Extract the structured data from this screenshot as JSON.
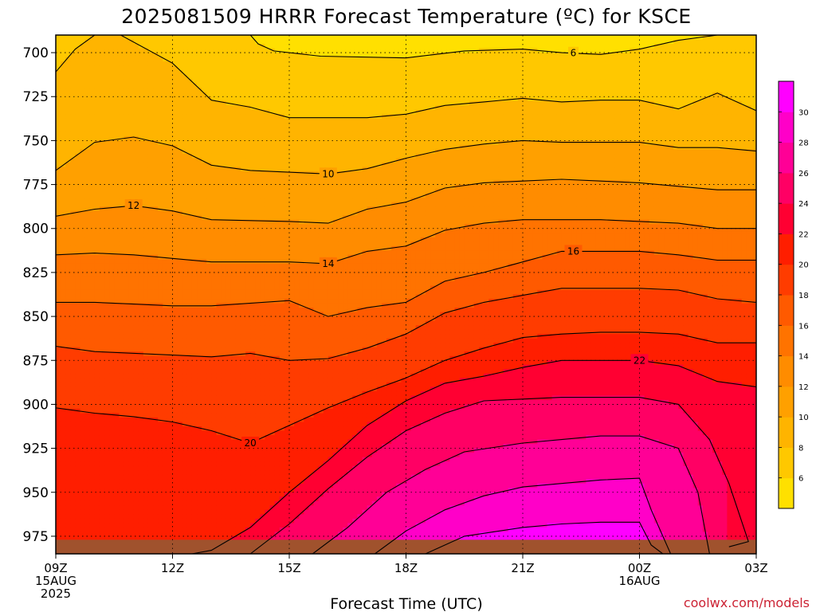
{
  "chart_data": {
    "type": "heatmap",
    "title": "2025081509 HRRR Forecast Temperature (ºC) for KSCE",
    "xlabel": "Forecast Time (UTC)",
    "ylabel": "",
    "credit": "coolwx.com/models",
    "y_axis": {
      "quantity": "pressure (hPa)",
      "range": [
        690,
        985
      ],
      "inverted": true,
      "ticks": [
        700,
        725,
        750,
        775,
        800,
        825,
        850,
        875,
        900,
        925,
        950,
        975
      ],
      "tick_labels": [
        "700",
        "725",
        "750",
        "775",
        "800",
        "825",
        "850",
        "875",
        "900",
        "925",
        "950",
        "975"
      ]
    },
    "x_axis": {
      "range": [
        "2025-08-15T09:00Z",
        "2025-08-16T03:00Z"
      ],
      "hours_range": [
        9,
        27
      ],
      "tick_hours": [
        9,
        12,
        15,
        18,
        21,
        24,
        27
      ],
      "tick_labels": [
        [
          "09Z",
          "15AUG",
          "2025"
        ],
        [
          "12Z"
        ],
        [
          "15Z"
        ],
        [
          "18Z"
        ],
        [
          "21Z"
        ],
        [
          "00Z",
          "16AUG"
        ],
        [
          "03Z"
        ]
      ]
    },
    "grid": true,
    "grid_style": "dotted",
    "ground_color": "#a0522d",
    "colorbar": {
      "placement": "right",
      "levels": [
        4,
        6,
        8,
        10,
        12,
        14,
        16,
        18,
        20,
        22,
        24,
        26,
        28,
        30,
        32
      ],
      "tick_labels": [
        "6",
        "8",
        "10",
        "12",
        "14",
        "16",
        "18",
        "20",
        "22",
        "24",
        "26",
        "28",
        "30"
      ],
      "colors": [
        "#ffe000",
        "#ffc800",
        "#ffb400",
        "#ffa000",
        "#ff8c00",
        "#ff7300",
        "#ff5a00",
        "#ff3c00",
        "#ff1e00",
        "#ff0032",
        "#ff0064",
        "#ff0096",
        "#ff00c8",
        "#ff00ff"
      ]
    },
    "contour_interval": 2,
    "contours": [
      {
        "value": 6,
        "label": "6",
        "points": [
          [
            14.0,
            690
          ],
          [
            14.2,
            695
          ],
          [
            14.6,
            699
          ],
          [
            15.8,
            702
          ],
          [
            18.0,
            703
          ],
          [
            19.5,
            699
          ],
          [
            21.0,
            698
          ],
          [
            22.0,
            700
          ],
          [
            23.0,
            701
          ],
          [
            24.0,
            698
          ],
          [
            25.0,
            693
          ],
          [
            26.0,
            690
          ]
        ]
      },
      {
        "value": 8,
        "label": "",
        "points": [
          [
            9.0,
            711
          ],
          [
            9.5,
            698
          ],
          [
            10.0,
            690
          ],
          [
            10.5,
            688
          ],
          [
            12.0,
            706
          ],
          [
            13.0,
            727
          ],
          [
            14.0,
            731
          ],
          [
            15.0,
            737
          ],
          [
            17.0,
            737
          ],
          [
            18.0,
            735
          ],
          [
            19.0,
            730
          ],
          [
            20.0,
            728
          ],
          [
            21.0,
            726
          ],
          [
            22.0,
            728
          ],
          [
            23.0,
            727
          ],
          [
            24.0,
            727
          ],
          [
            25.0,
            732
          ],
          [
            26.0,
            723
          ],
          [
            27.0,
            733
          ]
        ]
      },
      {
        "value": 10,
        "label": "10",
        "points": [
          [
            9.0,
            767
          ],
          [
            10.0,
            751
          ],
          [
            11.0,
            748
          ],
          [
            12.0,
            753
          ],
          [
            13.0,
            764
          ],
          [
            14.0,
            767
          ],
          [
            16.0,
            769
          ],
          [
            17.0,
            766
          ],
          [
            18.0,
            760
          ],
          [
            19.0,
            755
          ],
          [
            20.0,
            752
          ],
          [
            21.0,
            750
          ],
          [
            22.0,
            751
          ],
          [
            23.0,
            751
          ],
          [
            24.0,
            751
          ],
          [
            25.0,
            754
          ],
          [
            26.0,
            754
          ],
          [
            27.0,
            756
          ]
        ]
      },
      {
        "value": 12,
        "label": "12",
        "points": [
          [
            9.0,
            793
          ],
          [
            10.0,
            789
          ],
          [
            11.0,
            787
          ],
          [
            12.0,
            790
          ],
          [
            13.0,
            795
          ],
          [
            15.0,
            796
          ],
          [
            16.0,
            797
          ],
          [
            17.0,
            789
          ],
          [
            18.0,
            785
          ],
          [
            19.0,
            777
          ],
          [
            20.0,
            774
          ],
          [
            21.0,
            773
          ],
          [
            22.0,
            772
          ],
          [
            23.0,
            773
          ],
          [
            24.0,
            774
          ],
          [
            25.0,
            776
          ],
          [
            26.0,
            778
          ],
          [
            27.0,
            778
          ]
        ]
      },
      {
        "value": 14,
        "label": "14",
        "points": [
          [
            9.0,
            815
          ],
          [
            10.0,
            814
          ],
          [
            11.0,
            815
          ],
          [
            12.0,
            817
          ],
          [
            13.0,
            819
          ],
          [
            15.0,
            819
          ],
          [
            16.0,
            820
          ],
          [
            17.0,
            813
          ],
          [
            18.0,
            810
          ],
          [
            19.0,
            801
          ],
          [
            20.0,
            797
          ],
          [
            21.0,
            795
          ],
          [
            22.0,
            795
          ],
          [
            23.0,
            795
          ],
          [
            24.0,
            796
          ],
          [
            25.0,
            797
          ],
          [
            26.0,
            800
          ],
          [
            27.0,
            800
          ]
        ]
      },
      {
        "value": 16,
        "label": "16",
        "points": [
          [
            9.0,
            842
          ],
          [
            10.0,
            842
          ],
          [
            11.0,
            843
          ],
          [
            12.0,
            844
          ],
          [
            13.0,
            844
          ],
          [
            15.0,
            841
          ],
          [
            16.0,
            850
          ],
          [
            17.0,
            845
          ],
          [
            18.0,
            842
          ],
          [
            19.0,
            830
          ],
          [
            20.0,
            825
          ],
          [
            21.0,
            819
          ],
          [
            22.0,
            813
          ],
          [
            23.0,
            813
          ],
          [
            24.0,
            813
          ],
          [
            25.0,
            815
          ],
          [
            26.0,
            818
          ],
          [
            27.0,
            818
          ]
        ]
      },
      {
        "value": 18,
        "label": "",
        "points": [
          [
            9.0,
            867
          ],
          [
            10.0,
            870
          ],
          [
            12.0,
            872
          ],
          [
            13.0,
            873
          ],
          [
            14.0,
            871
          ],
          [
            15.0,
            875
          ],
          [
            16.0,
            874
          ],
          [
            17.0,
            868
          ],
          [
            18.0,
            860
          ],
          [
            19.0,
            848
          ],
          [
            20.0,
            842
          ],
          [
            21.0,
            838
          ],
          [
            22.0,
            834
          ],
          [
            23.0,
            834
          ],
          [
            24.0,
            834
          ],
          [
            25.0,
            835
          ],
          [
            26.0,
            840
          ],
          [
            27.0,
            842
          ]
        ]
      },
      {
        "value": 20,
        "label": "20",
        "points": [
          [
            9.0,
            902
          ],
          [
            10.0,
            905
          ],
          [
            11.0,
            907
          ],
          [
            12.0,
            910
          ],
          [
            13.0,
            915
          ],
          [
            14.0,
            922
          ],
          [
            15.0,
            912
          ],
          [
            16.0,
            902
          ],
          [
            17.0,
            893
          ],
          [
            18.0,
            885
          ],
          [
            19.0,
            875
          ],
          [
            20.0,
            868
          ],
          [
            21.0,
            862
          ],
          [
            22.0,
            860
          ],
          [
            23.0,
            859
          ],
          [
            24.0,
            859
          ],
          [
            25.0,
            860
          ],
          [
            26.0,
            865
          ],
          [
            27.0,
            865
          ]
        ]
      },
      {
        "value": 22,
        "label": "22",
        "points": [
          [
            12.5,
            985
          ],
          [
            13.0,
            983
          ],
          [
            14.0,
            970
          ],
          [
            15.0,
            950
          ],
          [
            16.0,
            932
          ],
          [
            17.0,
            912
          ],
          [
            18.0,
            898
          ],
          [
            19.0,
            888
          ],
          [
            20.0,
            884
          ],
          [
            21.0,
            879
          ],
          [
            22.0,
            875
          ],
          [
            23.0,
            875
          ],
          [
            24.0,
            875
          ],
          [
            25.0,
            878
          ],
          [
            26.0,
            887
          ],
          [
            27.0,
            890
          ]
        ]
      },
      {
        "value": 24,
        "label": "",
        "points": [
          [
            14.0,
            985
          ],
          [
            15.0,
            968
          ],
          [
            16.0,
            948
          ],
          [
            17.0,
            930
          ],
          [
            18.0,
            915
          ],
          [
            19.0,
            905
          ],
          [
            20.0,
            898
          ],
          [
            21.0,
            897
          ],
          [
            22.0,
            896
          ],
          [
            23.0,
            896
          ],
          [
            24.0,
            896
          ],
          [
            25.0,
            900
          ],
          [
            25.8,
            920
          ],
          [
            26.3,
            945
          ],
          [
            26.8,
            978
          ],
          [
            26.3,
            981
          ]
        ]
      },
      {
        "value": 26,
        "label": "",
        "points": [
          [
            15.6,
            985
          ],
          [
            16.5,
            970
          ],
          [
            17.5,
            950
          ],
          [
            18.5,
            937
          ],
          [
            19.5,
            927
          ],
          [
            21.0,
            922
          ],
          [
            22.0,
            920
          ],
          [
            23.0,
            918
          ],
          [
            24.0,
            918
          ],
          [
            25.0,
            925
          ],
          [
            25.5,
            950
          ],
          [
            25.8,
            985
          ]
        ]
      },
      {
        "value": 28,
        "label": "",
        "points": [
          [
            17.2,
            985
          ],
          [
            18.0,
            972
          ],
          [
            19.0,
            960
          ],
          [
            20.0,
            952
          ],
          [
            21.0,
            947
          ],
          [
            22.0,
            945
          ],
          [
            23.0,
            943
          ],
          [
            24.0,
            942
          ],
          [
            24.3,
            960
          ],
          [
            24.8,
            985
          ]
        ]
      },
      {
        "value": 30,
        "label": "",
        "points": [
          [
            18.5,
            985
          ],
          [
            19.5,
            975
          ],
          [
            21.0,
            970
          ],
          [
            22.0,
            968
          ],
          [
            23.0,
            967
          ],
          [
            24.0,
            967
          ],
          [
            24.3,
            980
          ],
          [
            24.6,
            985
          ]
        ]
      }
    ]
  }
}
